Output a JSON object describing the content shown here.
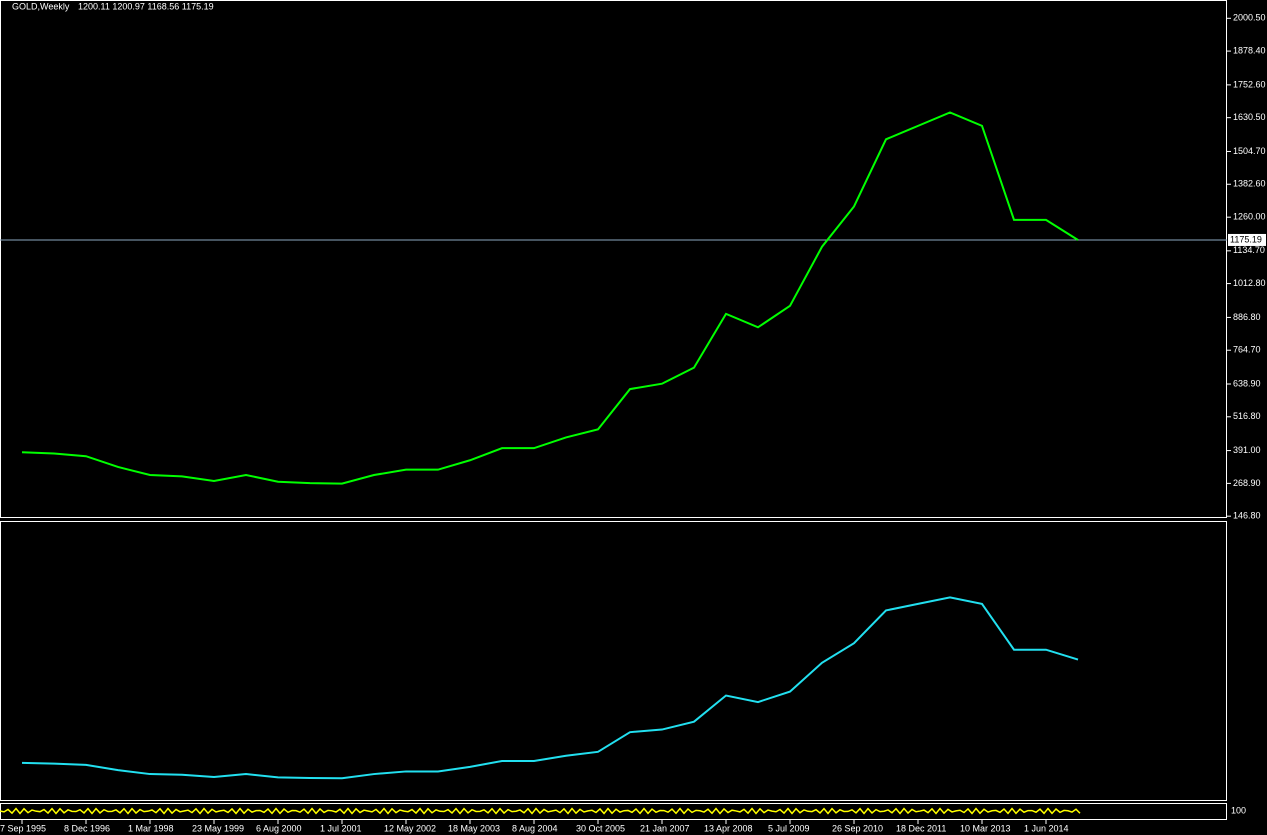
{
  "chart_data": {
    "type": "line",
    "title": "GOLD,Weekly",
    "subtitle": "1200.11 1200.97 1168.56 1175.19",
    "x": [
      "7 Sep 1995",
      null,
      "8 Dec 1996",
      null,
      "1 Mar 1998",
      null,
      "23 May 1999",
      null,
      "6 Aug 2000",
      null,
      "1 Jul 2001",
      null,
      "12 May 2002",
      null,
      "18 May 2003",
      null,
      "8 Aug 2004",
      null,
      "30 Oct 2005",
      null,
      "21 Jan 2007",
      null,
      "13 Apr 2008",
      null,
      "5 Jul 2009",
      null,
      "26 Sep 2010",
      null,
      "18 Dec 2011",
      null,
      "10 Mar 2013",
      null,
      "1 Jun 2014",
      null
    ],
    "series": [
      {
        "color": "#00ff00",
        "values": [
          385,
          380,
          370,
          330,
          300,
          295,
          278,
          300,
          275,
          270,
          268,
          300,
          320,
          320,
          355,
          400,
          400,
          440,
          470,
          620,
          640,
          700,
          900,
          850,
          930,
          1150,
          1300,
          1550,
          1600,
          1650,
          1600,
          1250,
          1250,
          1175
        ]
      }
    ],
    "ylim": [
      140,
      2050
    ],
    "yticks": [
      {
        "value": 146.8,
        "label": "146.80"
      },
      {
        "value": 268.9,
        "label": "268.90"
      },
      {
        "value": 391,
        "label": "391.00"
      },
      {
        "value": 516.8,
        "label": "516.80"
      },
      {
        "value": 638.9,
        "label": "638.90"
      },
      {
        "value": 764.7,
        "label": "764.70"
      },
      {
        "value": 886.8,
        "label": "886.80"
      },
      {
        "value": 1012.8,
        "label": "1012.80"
      },
      {
        "value": 1134.7,
        "label": "1134.70"
      },
      {
        "value": 1260,
        "label": "1260.00"
      },
      {
        "value": 1382.6,
        "label": "1382.60"
      },
      {
        "value": 1504.7,
        "label": "1504.70"
      },
      {
        "value": 1630.5,
        "label": "1630.50"
      },
      {
        "value": 1752.6,
        "label": "1752.60"
      },
      {
        "value": 1878.4,
        "label": "1878.40"
      },
      {
        "value": 2000.5,
        "label": "2000.50"
      }
    ],
    "last_price": 1175.19,
    "indicator_label": "100"
  }
}
